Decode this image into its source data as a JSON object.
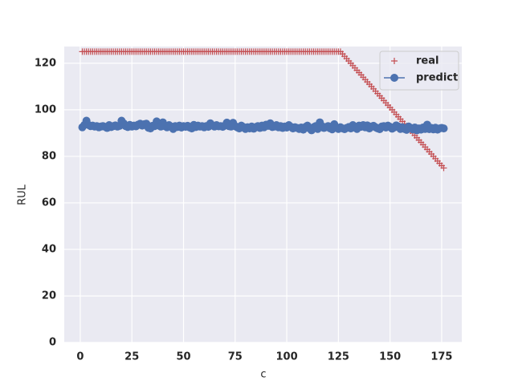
{
  "chart_data": {
    "type": "line",
    "xlabel": "c",
    "ylabel": "RUL",
    "x": [
      1,
      2,
      3,
      4,
      5,
      6,
      7,
      8,
      9,
      10,
      11,
      12,
      13,
      14,
      15,
      16,
      17,
      18,
      19,
      20,
      21,
      22,
      23,
      24,
      25,
      26,
      27,
      28,
      29,
      30,
      31,
      32,
      33,
      34,
      35,
      36,
      37,
      38,
      39,
      40,
      41,
      42,
      43,
      44,
      45,
      46,
      47,
      48,
      49,
      50,
      51,
      52,
      53,
      54,
      55,
      56,
      57,
      58,
      59,
      60,
      61,
      62,
      63,
      64,
      65,
      66,
      67,
      68,
      69,
      70,
      71,
      72,
      73,
      74,
      75,
      76,
      77,
      78,
      79,
      80,
      81,
      82,
      83,
      84,
      85,
      86,
      87,
      88,
      89,
      90,
      91,
      92,
      93,
      94,
      95,
      96,
      97,
      98,
      99,
      100,
      101,
      102,
      103,
      104,
      105,
      106,
      107,
      108,
      109,
      110,
      111,
      112,
      113,
      114,
      115,
      116,
      117,
      118,
      119,
      120,
      121,
      122,
      123,
      124,
      125,
      126,
      127,
      128,
      129,
      130,
      131,
      132,
      133,
      134,
      135,
      136,
      137,
      138,
      139,
      140,
      141,
      142,
      143,
      144,
      145,
      146,
      147,
      148,
      149,
      150,
      151,
      152,
      153,
      154,
      155,
      156,
      157,
      158,
      159,
      160,
      161,
      162,
      163,
      164,
      165,
      166,
      167,
      168,
      169,
      170,
      171,
      172,
      173,
      174,
      175,
      176
    ],
    "series": [
      {
        "name": "real",
        "color": "#c44e52",
        "marker": "plus",
        "values": [
          125,
          125,
          125,
          125,
          125,
          125,
          125,
          125,
          125,
          125,
          125,
          125,
          125,
          125,
          125,
          125,
          125,
          125,
          125,
          125,
          125,
          125,
          125,
          125,
          125,
          125,
          125,
          125,
          125,
          125,
          125,
          125,
          125,
          125,
          125,
          125,
          125,
          125,
          125,
          125,
          125,
          125,
          125,
          125,
          125,
          125,
          125,
          125,
          125,
          125,
          125,
          125,
          125,
          125,
          125,
          125,
          125,
          125,
          125,
          125,
          125,
          125,
          125,
          125,
          125,
          125,
          125,
          125,
          125,
          125,
          125,
          125,
          125,
          125,
          125,
          125,
          125,
          125,
          125,
          125,
          125,
          125,
          125,
          125,
          125,
          125,
          125,
          125,
          125,
          125,
          125,
          125,
          125,
          125,
          125,
          125,
          125,
          125,
          125,
          125,
          125,
          125,
          125,
          125,
          125,
          125,
          125,
          125,
          125,
          125,
          125,
          125,
          125,
          125,
          125,
          125,
          125,
          125,
          125,
          125,
          125,
          125,
          125,
          125,
          125,
          125,
          124,
          123,
          122,
          121,
          120,
          119,
          118,
          117,
          116,
          115,
          114,
          113,
          112,
          111,
          110,
          109,
          108,
          107,
          106,
          105,
          104,
          103,
          102,
          101,
          100,
          99,
          98,
          97,
          96,
          95,
          94,
          93,
          92,
          91,
          90,
          89,
          88,
          87,
          86,
          85,
          84,
          83,
          82,
          81,
          80,
          79,
          78,
          77,
          76,
          75
        ]
      },
      {
        "name": "predict",
        "color": "#4c72b0",
        "marker": "circle",
        "values": [
          92.5,
          93.5,
          95.3,
          93.5,
          93.0,
          93.2,
          92.8,
          93.0,
          92.5,
          92.8,
          93.0,
          92.7,
          92.2,
          93.4,
          92.6,
          93.0,
          93.3,
          92.8,
          93.1,
          95.3,
          94.2,
          93.0,
          92.6,
          93.5,
          92.8,
          93.2,
          92.9,
          93.6,
          94.0,
          93.2,
          93.8,
          94.0,
          92.3,
          92.0,
          93.1,
          93.0,
          95.0,
          93.2,
          92.8,
          94.6,
          93.0,
          92.5,
          93.4,
          92.8,
          91.8,
          93.0,
          92.6,
          93.2,
          92.4,
          93.0,
          92.7,
          93.1,
          92.4,
          92.0,
          93.5,
          92.6,
          93.2,
          92.8,
          93.0,
          92.5,
          93.0,
          92.7,
          94.2,
          93.3,
          92.8,
          93.4,
          92.9,
          93.0,
          92.7,
          93.2,
          94.5,
          93.0,
          92.8,
          94.4,
          93.0,
          92.5,
          92.0,
          93.2,
          92.6,
          91.8,
          92.5,
          92.0,
          92.8,
          91.9,
          92.6,
          93.0,
          92.2,
          93.2,
          92.5,
          93.6,
          93.1,
          94.2,
          92.6,
          92.8,
          93.4,
          92.5,
          93.0,
          92.2,
          92.8,
          92.4,
          93.4,
          92.7,
          92.0,
          92.5,
          92.2,
          91.8,
          92.4,
          91.5,
          92.6,
          93.2,
          92.0,
          91.2,
          92.5,
          93.0,
          91.8,
          94.6,
          93.0,
          92.2,
          92.6,
          93.0,
          92.0,
          91.6,
          93.8,
          92.4,
          91.8,
          92.5,
          92.0,
          91.7,
          92.2,
          92.6,
          92.0,
          93.4,
          92.4,
          91.8,
          93.2,
          92.7,
          93.4,
          92.5,
          93.3,
          92.0,
          92.8,
          93.1,
          92.5,
          92.0,
          91.7,
          92.8,
          93.0,
          92.4,
          93.2,
          92.7,
          91.9,
          92.4,
          93.3,
          92.8,
          91.8,
          92.5,
          91.8,
          91.4,
          92.8,
          92.2,
          91.6,
          92.4,
          91.2,
          92.0,
          91.5,
          92.4,
          91.8,
          93.6,
          91.7,
          92.2,
          91.6,
          92.3,
          91.5,
          92.0,
          92.2,
          92.0
        ]
      }
    ],
    "xlim": [
      -7.75,
      184.75
    ],
    "ylim": [
      0,
      127.2
    ],
    "xticks": [
      0,
      25,
      50,
      75,
      100,
      125,
      150,
      175
    ],
    "yticks": [
      0,
      20,
      40,
      60,
      80,
      100,
      120
    ],
    "grid": true,
    "legend": "upper right"
  }
}
